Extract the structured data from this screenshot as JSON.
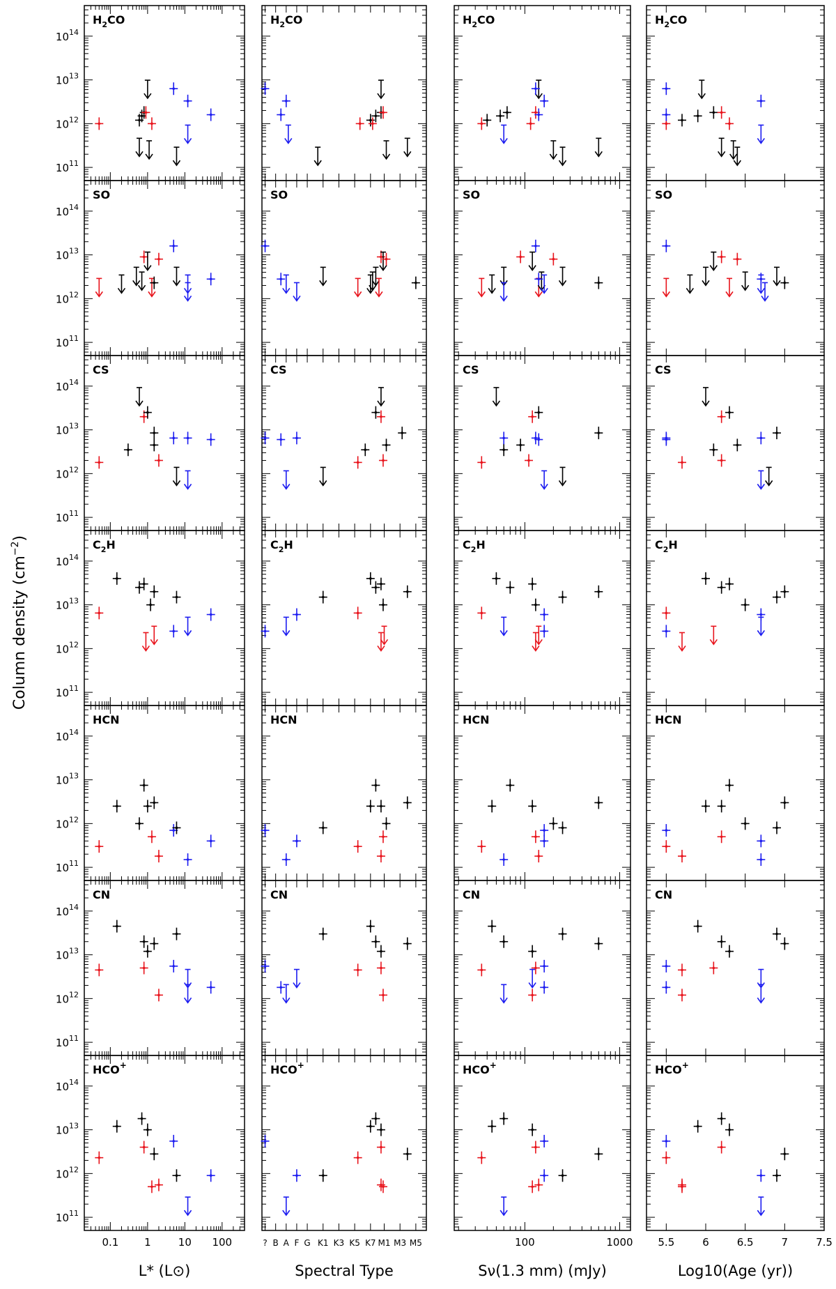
{
  "figure": {
    "ylabel": "Column density (cm",
    "ylabel_sup": "−2",
    "ylabel_close": ")"
  },
  "colors": {
    "black": "#000000",
    "red": "#e8141c",
    "blue": "#1c1cf0"
  },
  "chart_data": {
    "type": "scatter",
    "y_scale": "log",
    "ylim": [
      50000000000,
      500000000000000
    ],
    "y_ticks": [
      {
        "base": "10",
        "exp": "11"
      },
      {
        "base": "10",
        "exp": "12"
      },
      {
        "base": "10",
        "exp": "13"
      },
      {
        "base": "10",
        "exp": "14"
      }
    ],
    "columns": [
      {
        "key": "lum",
        "xlabel": "L* (L⊙)",
        "xscale": "log",
        "xlim": [
          0.02,
          400
        ],
        "ticks": [
          {
            "v": 0.1,
            "l": "0.1"
          },
          {
            "v": 1,
            "l": "1"
          },
          {
            "v": 10,
            "l": "10"
          },
          {
            "v": 100,
            "l": "100"
          }
        ]
      },
      {
        "key": "spt",
        "xlabel": "Spectral Type",
        "xscale": "linear",
        "xlim": [
          -0.3,
          15.3
        ],
        "ticks": [
          {
            "v": 0,
            "l": "?"
          },
          {
            "v": 1,
            "l": "B"
          },
          {
            "v": 2,
            "l": "A"
          },
          {
            "v": 3,
            "l": "F"
          },
          {
            "v": 4,
            "l": "G"
          },
          {
            "v": 5.5,
            "l": "K1"
          },
          {
            "v": 7,
            "l": "K3"
          },
          {
            "v": 8.5,
            "l": "K5"
          },
          {
            "v": 10,
            "l": "K7"
          },
          {
            "v": 11.3,
            "l": "M1"
          },
          {
            "v": 12.8,
            "l": "M3"
          },
          {
            "v": 14.3,
            "l": "M5"
          }
        ]
      },
      {
        "key": "flux",
        "xlabel": "Sν(1.3 mm) (mJy)",
        "xscale": "log",
        "xlim": [
          18,
          1300
        ],
        "ticks": [
          {
            "v": 100,
            "l": "100"
          },
          {
            "v": 1000,
            "l": "1000"
          }
        ]
      },
      {
        "key": "age",
        "xlabel": "Log10(Age (yr))",
        "xscale": "linear",
        "xlim": [
          5.25,
          7.5
        ],
        "ticks": [
          {
            "v": 5.5,
            "l": "5.5"
          },
          {
            "v": 6,
            "l": "6"
          },
          {
            "v": 6.5,
            "l": "6.5"
          },
          {
            "v": 7,
            "l": "7"
          },
          {
            "v": 7.5,
            "l": "7.5"
          }
        ]
      }
    ],
    "rows": [
      {
        "species": "H2CO",
        "label_main": "H",
        "label_sub": "2",
        "label_tail": "CO",
        "label_sup": "",
        "points": [
          {
            "l": 0.05,
            "st": 9,
            "f": 35,
            "a": 5.5,
            "n": 1000000000000.0,
            "c": "red"
          },
          {
            "l": 0.6,
            "st": 10,
            "f": 40,
            "a": 5.7,
            "n": 1200000000000.0,
            "c": "black"
          },
          {
            "l": 0.7,
            "st": 10.5,
            "f": 55,
            "a": 5.9,
            "n": 1500000000000.0,
            "c": "black"
          },
          {
            "l": 0.8,
            "st": 11,
            "f": 65,
            "a": 6.1,
            "n": 1800000000000.0,
            "c": "black"
          },
          {
            "l": 1.0,
            "st": 11,
            "f": 140,
            "a": 5.95,
            "n": 8500000000000.0,
            "c": "black",
            "u": 1
          },
          {
            "l": 0.9,
            "st": 11.2,
            "f": 130,
            "a": 6.2,
            "n": 1800000000000.0,
            "c": "red"
          },
          {
            "l": 1.3,
            "st": 10.2,
            "f": 115,
            "a": 6.3,
            "n": 1000000000000.0,
            "c": "red"
          },
          {
            "l": 1.1,
            "st": 11.5,
            "f": 200,
            "a": 6.35,
            "n": 350000000000.0,
            "c": "black",
            "u": 1
          },
          {
            "l": 5.0,
            "st": 0,
            "f": 130,
            "a": 5.5,
            "n": 6300000000000.0,
            "c": "blue"
          },
          {
            "l": 12,
            "st": 2,
            "f": 160,
            "a": 6.7,
            "n": 3300000000000.0,
            "c": "blue"
          },
          {
            "l": 12,
            "st": 2.2,
            "f": 60,
            "a": 6.7,
            "n": 800000000000.0,
            "c": "blue",
            "u": 1
          },
          {
            "l": 50,
            "st": 1.5,
            "f": 140,
            "a": 5.5,
            "n": 1600000000000.0,
            "c": "blue"
          },
          {
            "l": 6.0,
            "st": 5,
            "f": 250,
            "a": 6.4,
            "n": 250000000000.0,
            "c": "black",
            "u": 1
          },
          {
            "l": 0.6,
            "st": 13.5,
            "f": 600,
            "a": 6.2,
            "n": 400000000000.0,
            "c": "black",
            "u": 1
          }
        ]
      },
      {
        "species": "SO",
        "label_main": "SO",
        "label_sub": "",
        "label_tail": "",
        "label_sup": "",
        "points": [
          {
            "l": 0.05,
            "st": 8.8,
            "f": 35,
            "a": 5.5,
            "n": 2500000000000.0,
            "c": "red",
            "u": 1
          },
          {
            "l": 0.2,
            "st": 10,
            "f": 45,
            "a": 5.8,
            "n": 3000000000000.0,
            "c": "black",
            "u": 1
          },
          {
            "l": 0.5,
            "st": 10.5,
            "f": 60,
            "a": 6.0,
            "n": 4500000000000.0,
            "c": "black",
            "u": 1
          },
          {
            "l": 0.8,
            "st": 11,
            "f": 90,
            "a": 6.2,
            "n": 9000000000000.0,
            "c": "red"
          },
          {
            "l": 1.0,
            "st": 11.2,
            "f": 120,
            "a": 6.1,
            "n": 10000000000000.0,
            "c": "black",
            "u": 1
          },
          {
            "l": 1.3,
            "st": 10.8,
            "f": 140,
            "a": 6.3,
            "n": 2500000000000.0,
            "c": "red",
            "u": 1
          },
          {
            "l": 2.0,
            "st": 11.5,
            "f": 200,
            "a": 6.4,
            "n": 8000000000000.0,
            "c": "red"
          },
          {
            "l": 0.7,
            "st": 10.2,
            "f": 150,
            "a": 6.5,
            "n": 3500000000000.0,
            "c": "black",
            "u": 1
          },
          {
            "l": 5.0,
            "st": 0,
            "f": 130,
            "a": 5.5,
            "n": 16000000000000.0,
            "c": "blue"
          },
          {
            "l": 12,
            "st": 2,
            "f": 160,
            "a": 6.7,
            "n": 3000000000000.0,
            "c": "blue",
            "u": 1
          },
          {
            "l": 12,
            "st": 3,
            "f": 60,
            "a": 6.75,
            "n": 2000000000000.0,
            "c": "blue",
            "u": 1
          },
          {
            "l": 50,
            "st": 1.5,
            "f": 140,
            "a": 6.7,
            "n": 2800000000000.0,
            "c": "blue"
          },
          {
            "l": 6.0,
            "st": 5.5,
            "f": 250,
            "a": 6.9,
            "n": 4500000000000.0,
            "c": "black",
            "u": 1
          },
          {
            "l": 1.5,
            "st": 14.3,
            "f": 600,
            "a": 7.0,
            "n": 2300000000000.0,
            "c": "black"
          }
        ]
      },
      {
        "species": "CS",
        "label_main": "CS",
        "label_sub": "",
        "label_tail": "",
        "label_sup": "",
        "points": [
          {
            "l": 0.05,
            "st": 8.8,
            "f": 35,
            "a": 5.7,
            "n": 1800000000000.0,
            "c": "red"
          },
          {
            "l": 0.6,
            "st": 11,
            "f": 50,
            "a": 6.0,
            "n": 80000000000000.0,
            "c": "black",
            "u": 1
          },
          {
            "l": 0.8,
            "st": 11,
            "f": 120,
            "a": 6.2,
            "n": 20000000000000.0,
            "c": "red"
          },
          {
            "l": 1.0,
            "st": 10.5,
            "f": 140,
            "a": 6.3,
            "n": 25000000000000.0,
            "c": "black"
          },
          {
            "l": 0.3,
            "st": 9.5,
            "f": 60,
            "a": 6.1,
            "n": 3500000000000.0,
            "c": "black"
          },
          {
            "l": 1.5,
            "st": 11.5,
            "f": 90,
            "a": 6.4,
            "n": 4500000000000.0,
            "c": "black"
          },
          {
            "l": 2.0,
            "st": 11.2,
            "f": 110,
            "a": 6.2,
            "n": 2000000000000.0,
            "c": "red"
          },
          {
            "l": 5.0,
            "st": 0,
            "f": 130,
            "a": 5.5,
            "n": 6500000000000.0,
            "c": "blue"
          },
          {
            "l": 12,
            "st": 2,
            "f": 160,
            "a": 6.7,
            "n": 1000000000000.0,
            "c": "blue",
            "u": 1
          },
          {
            "l": 12,
            "st": 3,
            "f": 60,
            "a": 6.7,
            "n": 6500000000000.0,
            "c": "blue"
          },
          {
            "l": 50,
            "st": 1.5,
            "f": 140,
            "a": 5.5,
            "n": 6000000000000.0,
            "c": "blue"
          },
          {
            "l": 6.0,
            "st": 5.5,
            "f": 250,
            "a": 6.8,
            "n": 1200000000000.0,
            "c": "black",
            "u": 1
          },
          {
            "l": 1.5,
            "st": 13,
            "f": 600,
            "a": 6.9,
            "n": 8500000000000.0,
            "c": "black"
          }
        ]
      },
      {
        "species": "C2H",
        "label_main": "C",
        "label_sub": "2",
        "label_tail": "H",
        "label_sup": "",
        "points": [
          {
            "l": 0.05,
            "st": 8.8,
            "f": 35,
            "a": 5.5,
            "n": 6500000000000.0,
            "c": "red"
          },
          {
            "l": 0.15,
            "st": 10,
            "f": 50,
            "a": 6.0,
            "n": 40000000000000.0,
            "c": "black"
          },
          {
            "l": 0.6,
            "st": 10.5,
            "f": 70,
            "a": 6.2,
            "n": 25000000000000.0,
            "c": "black"
          },
          {
            "l": 0.8,
            "st": 11,
            "f": 120,
            "a": 6.3,
            "n": 30000000000000.0,
            "c": "black"
          },
          {
            "l": 1.2,
            "st": 11.2,
            "f": 130,
            "a": 6.5,
            "n": 10000000000000.0,
            "c": "black"
          },
          {
            "l": 0.9,
            "st": 11,
            "f": 130,
            "a": 5.7,
            "n": 2000000000000.0,
            "c": "red",
            "u": 1
          },
          {
            "l": 1.5,
            "st": 11.3,
            "f": 140,
            "a": 6.1,
            "n": 2800000000000.0,
            "c": "red",
            "u": 1
          },
          {
            "l": 5.0,
            "st": 0,
            "f": 160,
            "a": 5.5,
            "n": 2500000000000.0,
            "c": "blue"
          },
          {
            "l": 12,
            "st": 2,
            "f": 60,
            "a": 6.7,
            "n": 4500000000000.0,
            "c": "blue",
            "u": 1
          },
          {
            "l": 50,
            "st": 3,
            "f": 160,
            "a": 6.7,
            "n": 6000000000000.0,
            "c": "blue"
          },
          {
            "l": 6.0,
            "st": 5.5,
            "f": 250,
            "a": 6.9,
            "n": 15000000000000.0,
            "c": "black"
          },
          {
            "l": 1.5,
            "st": 13.5,
            "f": 600,
            "a": 7.0,
            "n": 20000000000000.0,
            "c": "black"
          }
        ]
      },
      {
        "species": "HCN",
        "label_main": "HCN",
        "label_sub": "",
        "label_tail": "",
        "label_sup": "",
        "points": [
          {
            "l": 0.05,
            "st": 8.8,
            "f": 35,
            "a": 5.5,
            "n": 300000000000.0,
            "c": "red"
          },
          {
            "l": 0.15,
            "st": 10,
            "f": 45,
            "a": 6.2,
            "n": 2500000000000.0,
            "c": "black"
          },
          {
            "l": 0.8,
            "st": 10.5,
            "f": 70,
            "a": 6.3,
            "n": 7500000000000.0,
            "c": "black"
          },
          {
            "l": 1.0,
            "st": 11,
            "f": 120,
            "a": 6.0,
            "n": 2500000000000.0,
            "c": "black"
          },
          {
            "l": 1.3,
            "st": 11.2,
            "f": 130,
            "a": 6.2,
            "n": 500000000000.0,
            "c": "red"
          },
          {
            "l": 2.0,
            "st": 11,
            "f": 140,
            "a": 5.7,
            "n": 180000000000.0,
            "c": "red"
          },
          {
            "l": 0.6,
            "st": 11.5,
            "f": 200,
            "a": 6.5,
            "n": 1000000000000.0,
            "c": "black"
          },
          {
            "l": 5.0,
            "st": 0,
            "f": 160,
            "a": 5.5,
            "n": 700000000000.0,
            "c": "blue"
          },
          {
            "l": 12,
            "st": 2,
            "f": 60,
            "a": 6.7,
            "n": 150000000000.0,
            "c": "blue"
          },
          {
            "l": 50,
            "st": 3,
            "f": 160,
            "a": 6.7,
            "n": 400000000000.0,
            "c": "blue"
          },
          {
            "l": 6.0,
            "st": 5.5,
            "f": 250,
            "a": 6.9,
            "n": 800000000000.0,
            "c": "black"
          },
          {
            "l": 1.5,
            "st": 13.5,
            "f": 600,
            "a": 7.0,
            "n": 3000000000000.0,
            "c": "black"
          }
        ]
      },
      {
        "species": "CN",
        "label_main": "CN",
        "label_sub": "",
        "label_tail": "",
        "label_sup": "",
        "points": [
          {
            "l": 0.05,
            "st": 8.8,
            "f": 35,
            "a": 5.7,
            "n": 4500000000000.0,
            "c": "red"
          },
          {
            "l": 0.15,
            "st": 10,
            "f": 45,
            "a": 5.9,
            "n": 45000000000000.0,
            "c": "black"
          },
          {
            "l": 0.8,
            "st": 10.5,
            "f": 60,
            "a": 6.2,
            "n": 20000000000000.0,
            "c": "black"
          },
          {
            "l": 1.0,
            "st": 11,
            "f": 120,
            "a": 6.3,
            "n": 12000000000000.0,
            "c": "black"
          },
          {
            "l": 0.8,
            "st": 11,
            "f": 130,
            "a": 6.1,
            "n": 5000000000000.0,
            "c": "red"
          },
          {
            "l": 2.0,
            "st": 11.2,
            "f": 120,
            "a": 5.7,
            "n": 1200000000000.0,
            "c": "red"
          },
          {
            "l": 5.0,
            "st": 0,
            "f": 160,
            "a": 5.5,
            "n": 5500000000000.0,
            "c": "blue"
          },
          {
            "l": 12,
            "st": 2,
            "f": 60,
            "a": 6.7,
            "n": 1800000000000.0,
            "c": "blue",
            "u": 1
          },
          {
            "l": 12,
            "st": 3,
            "f": 120,
            "a": 6.7,
            "n": 4000000000000.0,
            "c": "blue",
            "u": 1
          },
          {
            "l": 50,
            "st": 1.5,
            "f": 160,
            "a": 5.5,
            "n": 1800000000000.0,
            "c": "blue"
          },
          {
            "l": 6.0,
            "st": 5.5,
            "f": 250,
            "a": 6.9,
            "n": 30000000000000.0,
            "c": "black"
          },
          {
            "l": 1.5,
            "st": 13.5,
            "f": 600,
            "a": 7.0,
            "n": 18000000000000.0,
            "c": "black"
          }
        ]
      },
      {
        "species": "HCO+",
        "label_main": "HCO",
        "label_sub": "",
        "label_tail": "",
        "label_sup": "+",
        "points": [
          {
            "l": 0.05,
            "st": 8.8,
            "f": 35,
            "a": 5.5,
            "n": 2300000000000.0,
            "c": "red"
          },
          {
            "l": 0.15,
            "st": 10,
            "f": 45,
            "a": 5.9,
            "n": 12000000000000.0,
            "c": "black"
          },
          {
            "l": 0.7,
            "st": 10.5,
            "f": 60,
            "a": 6.2,
            "n": 18000000000000.0,
            "c": "black"
          },
          {
            "l": 1.0,
            "st": 11,
            "f": 120,
            "a": 6.3,
            "n": 10000000000000.0,
            "c": "black"
          },
          {
            "l": 0.8,
            "st": 11,
            "f": 130,
            "a": 6.2,
            "n": 4000000000000.0,
            "c": "red"
          },
          {
            "l": 1.3,
            "st": 11.2,
            "f": 120,
            "a": 5.7,
            "n": 500000000000.0,
            "c": "red"
          },
          {
            "l": 2.0,
            "st": 11,
            "f": 140,
            "a": 5.7,
            "n": 550000000000.0,
            "c": "red"
          },
          {
            "l": 5.0,
            "st": 0,
            "f": 160,
            "a": 5.5,
            "n": 5500000000000.0,
            "c": "blue"
          },
          {
            "l": 12,
            "st": 2,
            "f": 60,
            "a": 6.7,
            "n": 250000000000.0,
            "c": "blue",
            "u": 1
          },
          {
            "l": 50,
            "st": 3,
            "f": 160,
            "a": 6.7,
            "n": 900000000000.0,
            "c": "blue"
          },
          {
            "l": 6.0,
            "st": 5.5,
            "f": 250,
            "a": 6.9,
            "n": 900000000000.0,
            "c": "black"
          },
          {
            "l": 1.5,
            "st": 13.5,
            "f": 600,
            "a": 7.0,
            "n": 2800000000000.0,
            "c": "black"
          }
        ]
      }
    ]
  }
}
